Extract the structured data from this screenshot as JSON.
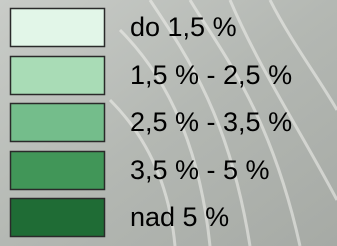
{
  "legend": {
    "items": [
      {
        "label": "do 1,5 %",
        "color": "#e2f6e8"
      },
      {
        "label": "1,5 % - 2,5 %",
        "color": "#a9dcb6"
      },
      {
        "label": "2,5 % - 3,5 %",
        "color": "#74bd8b"
      },
      {
        "label": "3,5 % - 5 %",
        "color": "#419658"
      },
      {
        "label": "nad 5 %",
        "color": "#1f6c35"
      }
    ]
  }
}
